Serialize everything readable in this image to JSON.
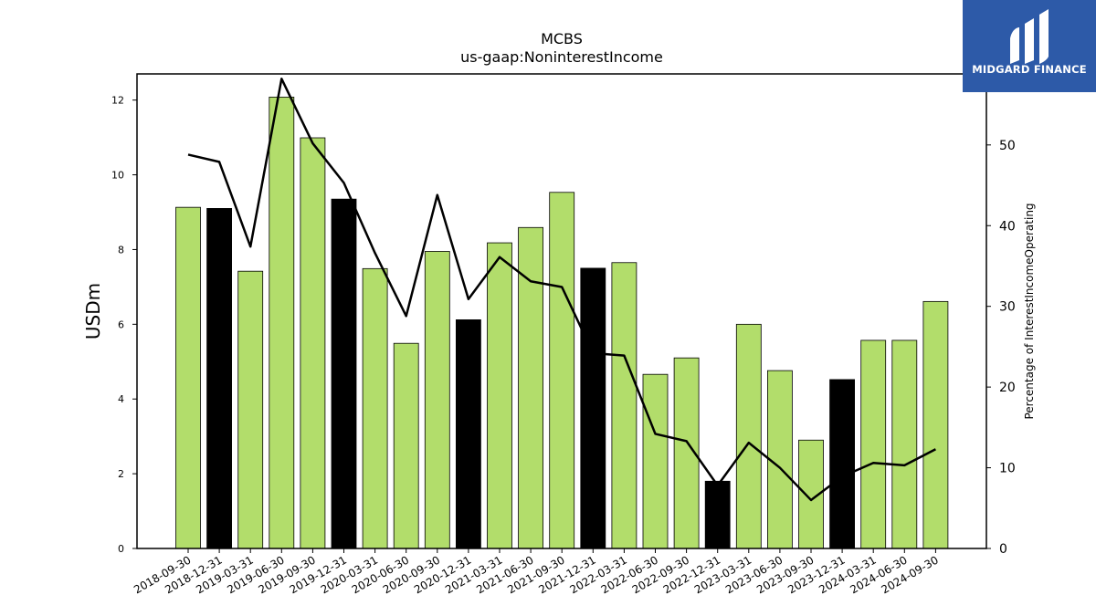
{
  "chart_data": {
    "type": "bar",
    "title": "MCBS",
    "subtitle": "us-gaap:NoninterestIncome",
    "ylabel": "USDm",
    "y2label": "Percentage of InterestIncomeOperating",
    "ylim": [
      0,
      12.7
    ],
    "y2lim": [
      0,
      58.8
    ],
    "yticks": [
      0,
      2,
      4,
      6,
      8,
      10,
      12
    ],
    "y2ticks": [
      0,
      10,
      20,
      30,
      40,
      50
    ],
    "categories": [
      "2018-09-30",
      "2018-12-31",
      "2019-03-31",
      "2019-06-30",
      "2019-09-30",
      "2019-12-31",
      "2020-03-31",
      "2020-06-30",
      "2020-09-30",
      "2020-12-31",
      "2021-03-31",
      "2021-06-30",
      "2021-09-30",
      "2021-12-31",
      "2022-03-31",
      "2022-06-30",
      "2022-09-30",
      "2022-12-31",
      "2023-03-31",
      "2023-06-30",
      "2023-09-30",
      "2023-12-31",
      "2024-03-31",
      "2024-06-30",
      "2024-09-30"
    ],
    "series": [
      {
        "type": "bar",
        "axis": "left",
        "values": [
          9.13,
          9.1,
          7.42,
          12.08,
          10.99,
          9.35,
          7.49,
          5.49,
          7.95,
          6.12,
          8.18,
          8.59,
          9.53,
          7.5,
          7.65,
          4.66,
          5.1,
          1.8,
          6.0,
          4.76,
          2.9,
          4.52,
          5.57,
          5.57,
          6.61
        ],
        "colors": [
          "#b2dd6b",
          "#000000",
          "#b2dd6b",
          "#b2dd6b",
          "#b2dd6b",
          "#000000",
          "#b2dd6b",
          "#b2dd6b",
          "#b2dd6b",
          "#000000",
          "#b2dd6b",
          "#b2dd6b",
          "#b2dd6b",
          "#000000",
          "#b2dd6b",
          "#b2dd6b",
          "#b2dd6b",
          "#000000",
          "#b2dd6b",
          "#b2dd6b",
          "#b2dd6b",
          "#000000",
          "#b2dd6b",
          "#b2dd6b",
          "#b2dd6b"
        ]
      },
      {
        "type": "line",
        "axis": "right",
        "color": "#000000",
        "values": [
          48.8,
          47.9,
          37.4,
          58.2,
          50.2,
          45.3,
          36.6,
          28.8,
          43.8,
          30.9,
          36.1,
          33.1,
          32.4,
          24.2,
          23.9,
          14.2,
          13.3,
          7.8,
          13.1,
          10.0,
          6.0,
          8.9,
          10.6,
          10.3,
          12.3
        ]
      }
    ],
    "grid": false
  },
  "branding": {
    "name": "MIDGARD FINANCE",
    "color": "#2d5aa8"
  }
}
